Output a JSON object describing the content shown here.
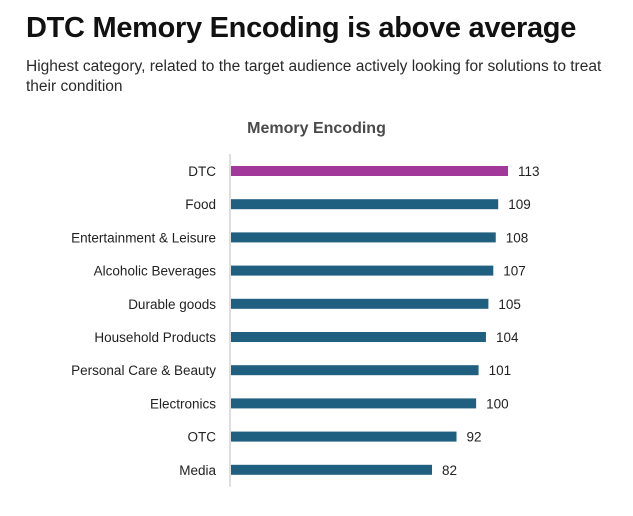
{
  "header": {
    "title": "DTC Memory Encoding is above average",
    "subtitle": "Highest category, related to the target audience actively looking for solutions to treat their condition"
  },
  "chart_data": {
    "type": "bar",
    "orientation": "horizontal",
    "title": "Memory Encoding",
    "categories": [
      "DTC",
      "Food",
      "Entertainment & Leisure",
      "Alcoholic Beverages",
      "Durable goods",
      "Household Products",
      "Personal Care & Beauty",
      "Electronics",
      "OTC",
      "Media"
    ],
    "values": [
      113,
      109,
      108,
      107,
      105,
      104,
      101,
      100,
      92,
      82
    ],
    "highlight_index": 0,
    "colors": {
      "highlight": "#a2399a",
      "default": "#1f5f80"
    },
    "xlim": [
      0,
      120
    ],
    "grid": false,
    "data_labels": true
  }
}
